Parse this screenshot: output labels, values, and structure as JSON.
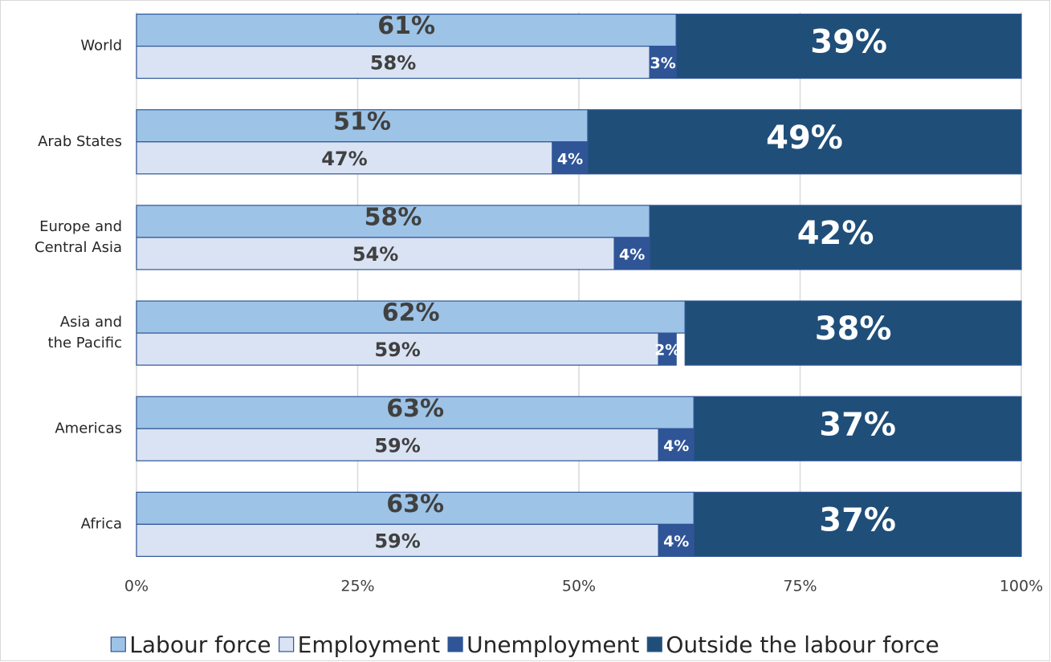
{
  "chart_data": {
    "type": "bar",
    "orientation": "horizontal",
    "categories": [
      "World",
      "Arab States",
      "Europe and\nCentral Asia",
      "Asia and\nthe Pacific",
      "Americas",
      "Africa"
    ],
    "series": [
      {
        "name": "Labour force",
        "color": "#9dc3e6",
        "values": [
          61,
          51,
          58,
          62,
          63,
          63
        ],
        "value_labels": [
          "61%",
          "51%",
          "58%",
          "62%",
          "63%",
          "63%"
        ]
      },
      {
        "name": "Employment",
        "color": "#dae3f3",
        "values": [
          58,
          47,
          54,
          59,
          59,
          59
        ],
        "value_labels": [
          "58%",
          "47%",
          "54%",
          "59%",
          "59%",
          "59%"
        ]
      },
      {
        "name": "Unemployment",
        "color": "#2f5597",
        "values": [
          3,
          4,
          4,
          2,
          4,
          4
        ],
        "value_labels": [
          "3%",
          "4%",
          "4%",
          "2%",
          "4%",
          "4%"
        ]
      },
      {
        "name": "Outside the labour force",
        "color": "#1f4e79",
        "values": [
          39,
          49,
          42,
          38,
          37,
          37
        ],
        "value_labels": [
          "39%",
          "49%",
          "42%",
          "38%",
          "37%",
          "37%"
        ]
      }
    ],
    "xlim": [
      0,
      100
    ],
    "xticks": [
      {
        "value": 0,
        "label": "0%"
      },
      {
        "value": 25,
        "label": "25%"
      },
      {
        "value": 50,
        "label": "50%"
      },
      {
        "value": 75,
        "label": "75%"
      },
      {
        "value": 100,
        "label": "100%"
      }
    ],
    "grid": true,
    "legend": "bottom"
  }
}
